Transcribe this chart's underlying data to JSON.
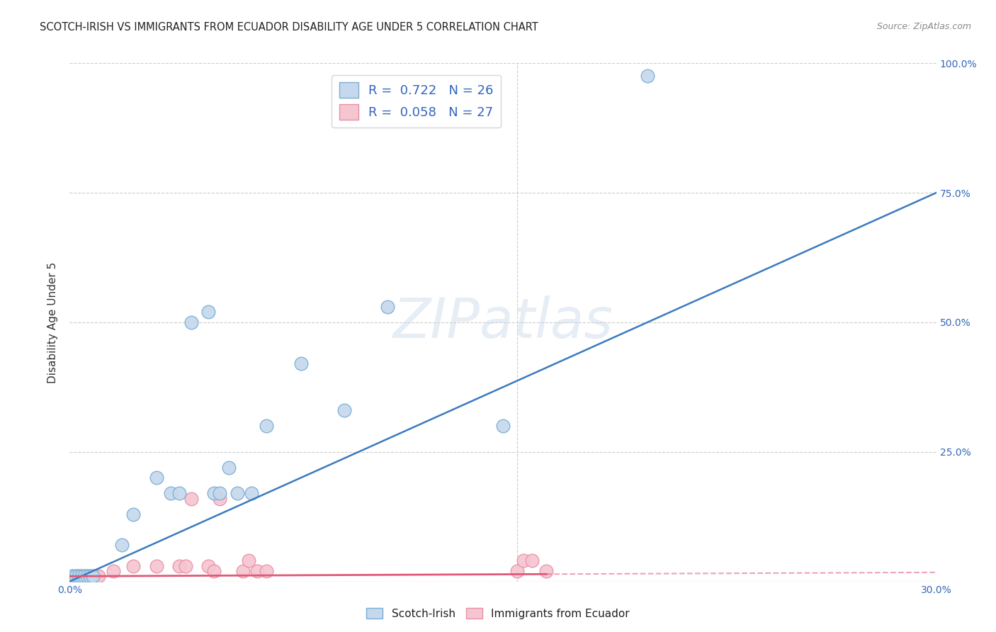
{
  "title": "SCOTCH-IRISH VS IMMIGRANTS FROM ECUADOR DISABILITY AGE UNDER 5 CORRELATION CHART",
  "source": "Source: ZipAtlas.com",
  "xlabel": "",
  "ylabel": "Disability Age Under 5",
  "xlim": [
    0.0,
    0.3
  ],
  "ylim": [
    0.0,
    1.0
  ],
  "xtick_labels": [
    "0.0%",
    "30.0%"
  ],
  "ytick_labels": [
    "25.0%",
    "50.0%",
    "75.0%",
    "100.0%"
  ],
  "scotch_irish_x": [
    0.001,
    0.002,
    0.003,
    0.004,
    0.005,
    0.006,
    0.007,
    0.008,
    0.018,
    0.022,
    0.03,
    0.035,
    0.038,
    0.042,
    0.048,
    0.05,
    0.052,
    0.055,
    0.058,
    0.063,
    0.068,
    0.08,
    0.095,
    0.11,
    0.15,
    0.2
  ],
  "scotch_irish_y": [
    0.01,
    0.01,
    0.01,
    0.01,
    0.01,
    0.01,
    0.01,
    0.01,
    0.07,
    0.13,
    0.2,
    0.17,
    0.17,
    0.5,
    0.52,
    0.17,
    0.17,
    0.22,
    0.17,
    0.17,
    0.3,
    0.42,
    0.33,
    0.53,
    0.3,
    0.975
  ],
  "ecuador_x": [
    0.001,
    0.002,
    0.003,
    0.004,
    0.005,
    0.006,
    0.007,
    0.008,
    0.009,
    0.01,
    0.015,
    0.022,
    0.03,
    0.038,
    0.04,
    0.042,
    0.048,
    0.05,
    0.052,
    0.06,
    0.062,
    0.065,
    0.068,
    0.155,
    0.157,
    0.16,
    0.165
  ],
  "ecuador_y": [
    0.01,
    0.01,
    0.01,
    0.01,
    0.01,
    0.01,
    0.01,
    0.01,
    0.01,
    0.01,
    0.02,
    0.03,
    0.03,
    0.03,
    0.03,
    0.16,
    0.03,
    0.02,
    0.16,
    0.02,
    0.04,
    0.02,
    0.02,
    0.02,
    0.04,
    0.04,
    0.02
  ],
  "scotch_R": 0.722,
  "scotch_N": 26,
  "ecuador_R": 0.058,
  "ecuador_N": 27,
  "blue_fill": "#c5d8ed",
  "blue_edge": "#7aaed4",
  "pink_fill": "#f5c5d0",
  "pink_edge": "#e890a8",
  "blue_line_color": "#3a7bbf",
  "pink_line_color": "#e05878",
  "legend_text_color": "#3366bb",
  "grid_color": "#cccccc",
  "background_color": "#ffffff",
  "watermark": "ZIPatlas",
  "blue_line_slope": 2.5,
  "blue_line_intercept": 0.0,
  "pink_line_slope": 0.025,
  "pink_line_intercept": 0.01
}
